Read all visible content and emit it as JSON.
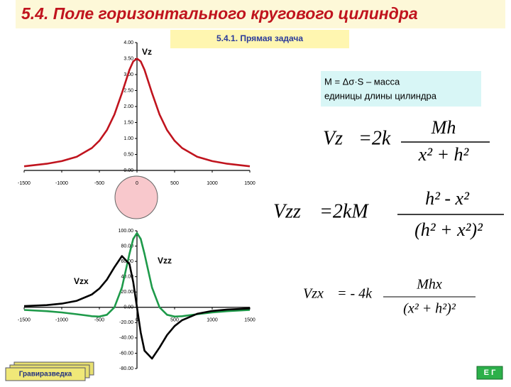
{
  "header": {
    "title": "5.4. Поле горизонтального кругового цилиндра",
    "subtitle": "5.4.1. Прямая задача"
  },
  "note": {
    "lines": [
      "M = Δσ·S – масса",
      "единицы длины цилиндра"
    ]
  },
  "formulas": [
    {
      "lhs": "Vz",
      "coef": "=2k",
      "numerator": "Mh",
      "denominator": "x² + h²"
    },
    {
      "lhs": "Vzz",
      "coef": "=2kM",
      "numerator": "h² - x²",
      "denominator": "(h² + x²)²"
    },
    {
      "lhs": "Vzx",
      "coef": "= - 4k",
      "numerator": "Mhx",
      "denominator": "(x² + h²)²"
    }
  ],
  "footer": {
    "left": "Гравиразведка",
    "right": "Е Г"
  },
  "chart_data": [
    {
      "type": "line",
      "x": [
        -1500,
        -1200,
        -1000,
        -800,
        -600,
        -500,
        -400,
        -300,
        -200,
        -100,
        -50,
        0,
        50,
        100,
        200,
        300,
        400,
        500,
        600,
        800,
        1000,
        1200,
        1500
      ],
      "series": [
        {
          "name": "Vz",
          "color": "#c0141e",
          "values": [
            0.13,
            0.21,
            0.29,
            0.43,
            0.7,
            0.93,
            1.26,
            1.75,
            2.42,
            3.15,
            3.41,
            3.5,
            3.41,
            3.15,
            2.42,
            1.75,
            1.26,
            0.93,
            0.7,
            0.43,
            0.29,
            0.21,
            0.13
          ]
        }
      ],
      "xlim": [
        -1500,
        1500
      ],
      "ylim": [
        0,
        4
      ],
      "xticks": [
        -1500,
        -1000,
        -500,
        0,
        500,
        1000,
        1500
      ],
      "yticks": [
        {
          "value": 0,
          "label": "0.00"
        },
        {
          "value": 0.5,
          "label": "0.50"
        },
        {
          "value": 1,
          "label": "1.00"
        },
        {
          "value": 1.5,
          "label": "1.50"
        },
        {
          "value": 2,
          "label": "2.00"
        },
        {
          "value": 2.5,
          "label": "2.50"
        },
        {
          "value": 3,
          "label": "3.00"
        },
        {
          "value": 3.5,
          "label": "3.50"
        },
        {
          "value": 4,
          "label": "4.00"
        }
      ]
    },
    {
      "type": "line",
      "x": [
        -1500,
        -1200,
        -1000,
        -800,
        -600,
        -500,
        -400,
        -300,
        -200,
        -100,
        -50,
        0,
        50,
        100,
        200,
        300,
        400,
        500,
        600,
        800,
        1000,
        1200,
        1500
      ],
      "series": [
        {
          "name": "Vzz",
          "color": "#1e9a4a",
          "values": [
            -3.44,
            -5.03,
            -6.69,
            -9.01,
            -11.64,
            -12.08,
            -9.78,
            0,
            25.8,
            69.8,
            89.3,
            97,
            89.3,
            69.8,
            25.8,
            0,
            -9.78,
            -12.08,
            -11.64,
            -9.01,
            -6.69,
            -5.03,
            -3.44
          ]
        },
        {
          "name": "Vzx",
          "color": "#000000",
          "values": [
            1.55,
            2.9,
            4.76,
            8.5,
            16.77,
            24.5,
            36.2,
            52.4,
            67,
            56.6,
            33.1,
            0,
            -33.1,
            -56.6,
            -67,
            -52.4,
            -36.2,
            -24.5,
            -16.77,
            -8.5,
            -4.76,
            -2.9,
            -1.55
          ]
        }
      ],
      "xlim": [
        -1500,
        1500
      ],
      "ylim": [
        -80,
        100
      ],
      "xticks": [
        -1500,
        -1000,
        -500,
        0,
        500,
        1000,
        1500
      ],
      "yticks": [
        {
          "value": -80,
          "label": "-80.00"
        },
        {
          "value": -60,
          "label": "-60.00"
        },
        {
          "value": -40,
          "label": "-40.00"
        },
        {
          "value": -20,
          "label": "-20.00"
        },
        {
          "value": 0,
          "label": "0.00"
        },
        {
          "value": 20,
          "label": "20.00"
        },
        {
          "value": 40,
          "label": "40.00"
        },
        {
          "value": 60,
          "label": "60.00"
        },
        {
          "value": 80,
          "label": "80.00"
        },
        {
          "value": 100,
          "label": "100.00"
        }
      ]
    }
  ]
}
